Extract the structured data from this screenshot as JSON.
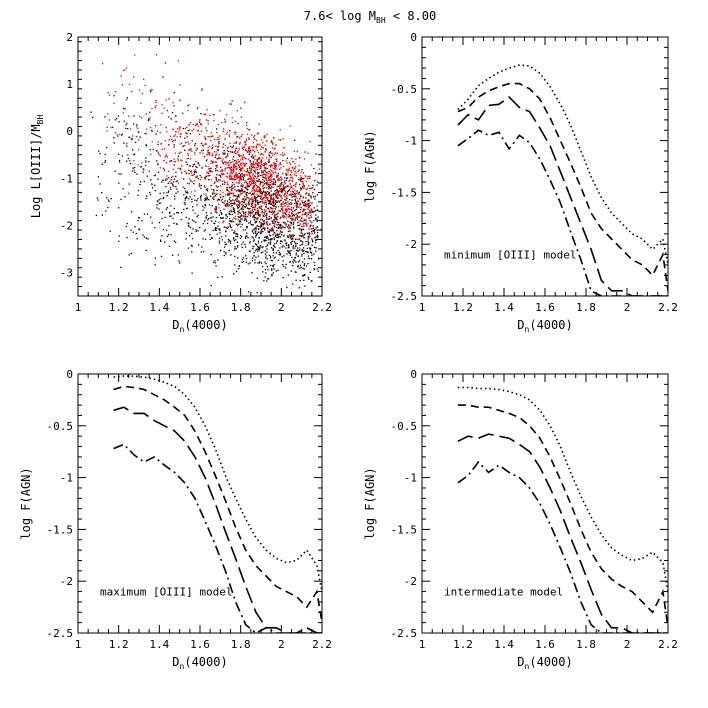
{
  "figure": {
    "title": "7.6< log M",
    "title_sub": "BH",
    "title_tail": " < 8.00"
  },
  "chart_data": [
    {
      "type": "scatter",
      "xlabel": "D",
      "xlabel_sub": "n",
      "xlabel_tail": "(4000)",
      "ylabel": "Log L[OIII]/M",
      "ylabel_sub": "BH",
      "xlim": [
        1.0,
        2.2
      ],
      "ylim": [
        -3.5,
        2.0
      ],
      "xticks": [
        1,
        1.2,
        1.4,
        1.6,
        1.8,
        2,
        2.2
      ],
      "xtick_labels": [
        "1",
        "1.2",
        "1.4",
        "1.6",
        "1.8",
        "2",
        "2.2"
      ],
      "yticks": [
        -3,
        -2,
        -1,
        0,
        1,
        2
      ],
      "ytick_labels": [
        "-3",
        "-2",
        "-1",
        "0",
        "1",
        "2"
      ],
      "grid": false,
      "series": [
        {
          "color": "#000000",
          "x_range": [
            1.05,
            2.18
          ],
          "y_trend": [
            -0.5,
            -1.9
          ],
          "y_spread": 0.85,
          "y_offset": -0.55,
          "density_peak_x": 1.9
        },
        {
          "color": "#ff0000",
          "x_range": [
            1.1,
            2.15
          ],
          "y_trend": [
            0.6,
            -1.6
          ],
          "y_spread": 0.7,
          "y_offset": 0.05,
          "density_peak_x": 1.88
        }
      ]
    },
    {
      "type": "line",
      "annotation": "minimum [OIII] model",
      "xlabel": "D",
      "xlabel_sub": "n",
      "xlabel_tail": "(4000)",
      "ylabel": "log F(AGN)",
      "xlim": [
        1.0,
        2.2
      ],
      "ylim": [
        -2.5,
        0.0
      ],
      "xticks": [
        1,
        1.2,
        1.4,
        1.6,
        1.8,
        2,
        2.2
      ],
      "xtick_labels": [
        "1",
        "1.2",
        "1.4",
        "1.6",
        "1.8",
        "2",
        "2.2"
      ],
      "yticks": [
        -2.5,
        -2,
        -1.5,
        -1,
        -0.5,
        0
      ],
      "ytick_labels": [
        "-2.5",
        "-2",
        "-1.5",
        "-1",
        "-0.5",
        "0"
      ],
      "x": [
        1.175,
        1.225,
        1.275,
        1.325,
        1.375,
        1.425,
        1.475,
        1.525,
        1.575,
        1.625,
        1.675,
        1.725,
        1.775,
        1.825,
        1.875,
        1.925,
        1.975,
        2.025,
        2.075,
        2.125,
        2.175,
        2.2
      ],
      "series": [
        {
          "dash": "dotted",
          "values": [
            -0.7,
            -0.6,
            -0.47,
            -0.4,
            -0.34,
            -0.3,
            -0.27,
            -0.28,
            -0.35,
            -0.48,
            -0.65,
            -0.85,
            -1.1,
            -1.35,
            -1.55,
            -1.7,
            -1.8,
            -1.9,
            -1.95,
            -2.05,
            -1.95,
            -2.2
          ]
        },
        {
          "dash": "short",
          "values": [
            -0.72,
            -0.68,
            -0.58,
            -0.52,
            -0.48,
            -0.45,
            -0.45,
            -0.5,
            -0.6,
            -0.78,
            -1.0,
            -1.22,
            -1.45,
            -1.7,
            -1.85,
            -1.95,
            -2.05,
            -2.15,
            -2.2,
            -2.3,
            -2.1,
            -2.45
          ]
        },
        {
          "dash": "long",
          "values": [
            -0.85,
            -0.75,
            -0.8,
            -0.66,
            -0.65,
            -0.58,
            -0.68,
            -0.72,
            -0.88,
            -1.05,
            -1.3,
            -1.55,
            -1.8,
            -2.05,
            -2.35,
            -2.45,
            -2.45,
            -2.5,
            -2.5,
            -2.5,
            -2.5,
            -2.5
          ]
        },
        {
          "dash": "dotdash",
          "values": [
            -1.05,
            -0.98,
            -0.9,
            -0.95,
            -0.92,
            -1.08,
            -0.95,
            -1.02,
            -1.18,
            -1.38,
            -1.6,
            -1.88,
            -2.15,
            -2.45,
            -2.5,
            -2.5,
            -2.5,
            -2.5,
            -2.5,
            -2.5,
            -2.5,
            -2.5
          ]
        }
      ]
    },
    {
      "type": "line",
      "annotation": "maximum [OIII] model",
      "xlabel": "D",
      "xlabel_sub": "n",
      "xlabel_tail": "(4000)",
      "ylabel": "log F(AGN)",
      "xlim": [
        1.0,
        2.2
      ],
      "ylim": [
        -2.5,
        0.0
      ],
      "xticks": [
        1,
        1.2,
        1.4,
        1.6,
        1.8,
        2,
        2.2
      ],
      "xtick_labels": [
        "1",
        "1.2",
        "1.4",
        "1.6",
        "1.8",
        "2",
        "2.2"
      ],
      "yticks": [
        -2.5,
        -2,
        -1.5,
        -1,
        -0.5,
        0
      ],
      "ytick_labels": [
        "-2.5",
        "-2",
        "-1.5",
        "-1",
        "-0.5",
        "0"
      ],
      "x": [
        1.175,
        1.225,
        1.275,
        1.325,
        1.375,
        1.425,
        1.475,
        1.525,
        1.575,
        1.625,
        1.675,
        1.725,
        1.775,
        1.825,
        1.875,
        1.925,
        1.975,
        2.025,
        2.075,
        2.125,
        2.175,
        2.2
      ],
      "series": [
        {
          "dash": "dotted",
          "values": [
            -0.03,
            -0.02,
            -0.02,
            -0.03,
            -0.05,
            -0.08,
            -0.12,
            -0.2,
            -0.32,
            -0.5,
            -0.72,
            -0.98,
            -1.2,
            -1.4,
            -1.58,
            -1.7,
            -1.78,
            -1.82,
            -1.8,
            -1.7,
            -1.85,
            -2.1
          ]
        },
        {
          "dash": "short",
          "values": [
            -0.15,
            -0.12,
            -0.13,
            -0.15,
            -0.2,
            -0.25,
            -0.32,
            -0.4,
            -0.55,
            -0.75,
            -0.98,
            -1.22,
            -1.48,
            -1.7,
            -1.85,
            -1.95,
            -2.05,
            -2.1,
            -2.15,
            -2.25,
            -2.1,
            -2.4
          ]
        },
        {
          "dash": "long",
          "values": [
            -0.35,
            -0.32,
            -0.38,
            -0.38,
            -0.45,
            -0.5,
            -0.55,
            -0.65,
            -0.8,
            -1.0,
            -1.25,
            -1.52,
            -1.78,
            -2.05,
            -2.3,
            -2.45,
            -2.45,
            -2.5,
            -2.5,
            -2.45,
            -2.5,
            -2.5
          ]
        },
        {
          "dash": "dotdash",
          "values": [
            -0.72,
            -0.68,
            -0.78,
            -0.85,
            -0.8,
            -0.88,
            -0.95,
            -1.05,
            -1.2,
            -1.42,
            -1.65,
            -1.9,
            -2.2,
            -2.42,
            -2.5,
            -2.45,
            -2.5,
            -2.5,
            -2.5,
            -2.5,
            -2.5,
            -2.5
          ]
        }
      ]
    },
    {
      "type": "line",
      "annotation": "intermediate model",
      "xlabel": "D",
      "xlabel_sub": "n",
      "xlabel_tail": "(4000)",
      "ylabel": "log F(AGN)",
      "xlim": [
        1.0,
        2.2
      ],
      "ylim": [
        -2.5,
        0.0
      ],
      "xticks": [
        1,
        1.2,
        1.4,
        1.6,
        1.8,
        2,
        2.2
      ],
      "xtick_labels": [
        "1",
        "1.2",
        "1.4",
        "1.6",
        "1.8",
        "2",
        "2.2"
      ],
      "yticks": [
        -2.5,
        -2,
        -1.5,
        -1,
        -0.5,
        0
      ],
      "ytick_labels": [
        "-2.5",
        "-2",
        "-1.5",
        "-1",
        "-0.5",
        "0"
      ],
      "x": [
        1.175,
        1.225,
        1.275,
        1.325,
        1.375,
        1.425,
        1.475,
        1.525,
        1.575,
        1.625,
        1.675,
        1.725,
        1.775,
        1.825,
        1.875,
        1.925,
        1.975,
        2.025,
        2.075,
        2.125,
        2.175,
        2.2
      ],
      "series": [
        {
          "dash": "dotted",
          "values": [
            -0.13,
            -0.13,
            -0.14,
            -0.14,
            -0.15,
            -0.17,
            -0.2,
            -0.25,
            -0.35,
            -0.5,
            -0.7,
            -0.95,
            -1.18,
            -1.38,
            -1.55,
            -1.68,
            -1.75,
            -1.8,
            -1.78,
            -1.72,
            -1.82,
            -2.1
          ]
        },
        {
          "dash": "short",
          "values": [
            -0.3,
            -0.3,
            -0.32,
            -0.32,
            -0.35,
            -0.38,
            -0.42,
            -0.5,
            -0.62,
            -0.8,
            -1.02,
            -1.25,
            -1.5,
            -1.72,
            -1.88,
            -1.98,
            -2.05,
            -2.1,
            -2.2,
            -2.3,
            -2.1,
            -2.45
          ]
        },
        {
          "dash": "long",
          "values": [
            -0.65,
            -0.6,
            -0.62,
            -0.58,
            -0.6,
            -0.62,
            -0.68,
            -0.75,
            -0.9,
            -1.1,
            -1.32,
            -1.58,
            -1.82,
            -2.08,
            -2.32,
            -2.45,
            -2.45,
            -2.5,
            -2.5,
            -2.5,
            -2.5,
            -2.5
          ]
        },
        {
          "dash": "dotdash",
          "values": [
            -1.05,
            -0.98,
            -0.85,
            -0.95,
            -0.88,
            -0.95,
            -1.0,
            -1.1,
            -1.25,
            -1.45,
            -1.68,
            -1.92,
            -2.2,
            -2.42,
            -2.5,
            -2.5,
            -2.5,
            -2.5,
            -2.5,
            -2.5,
            -2.5,
            -2.5
          ]
        }
      ]
    }
  ]
}
